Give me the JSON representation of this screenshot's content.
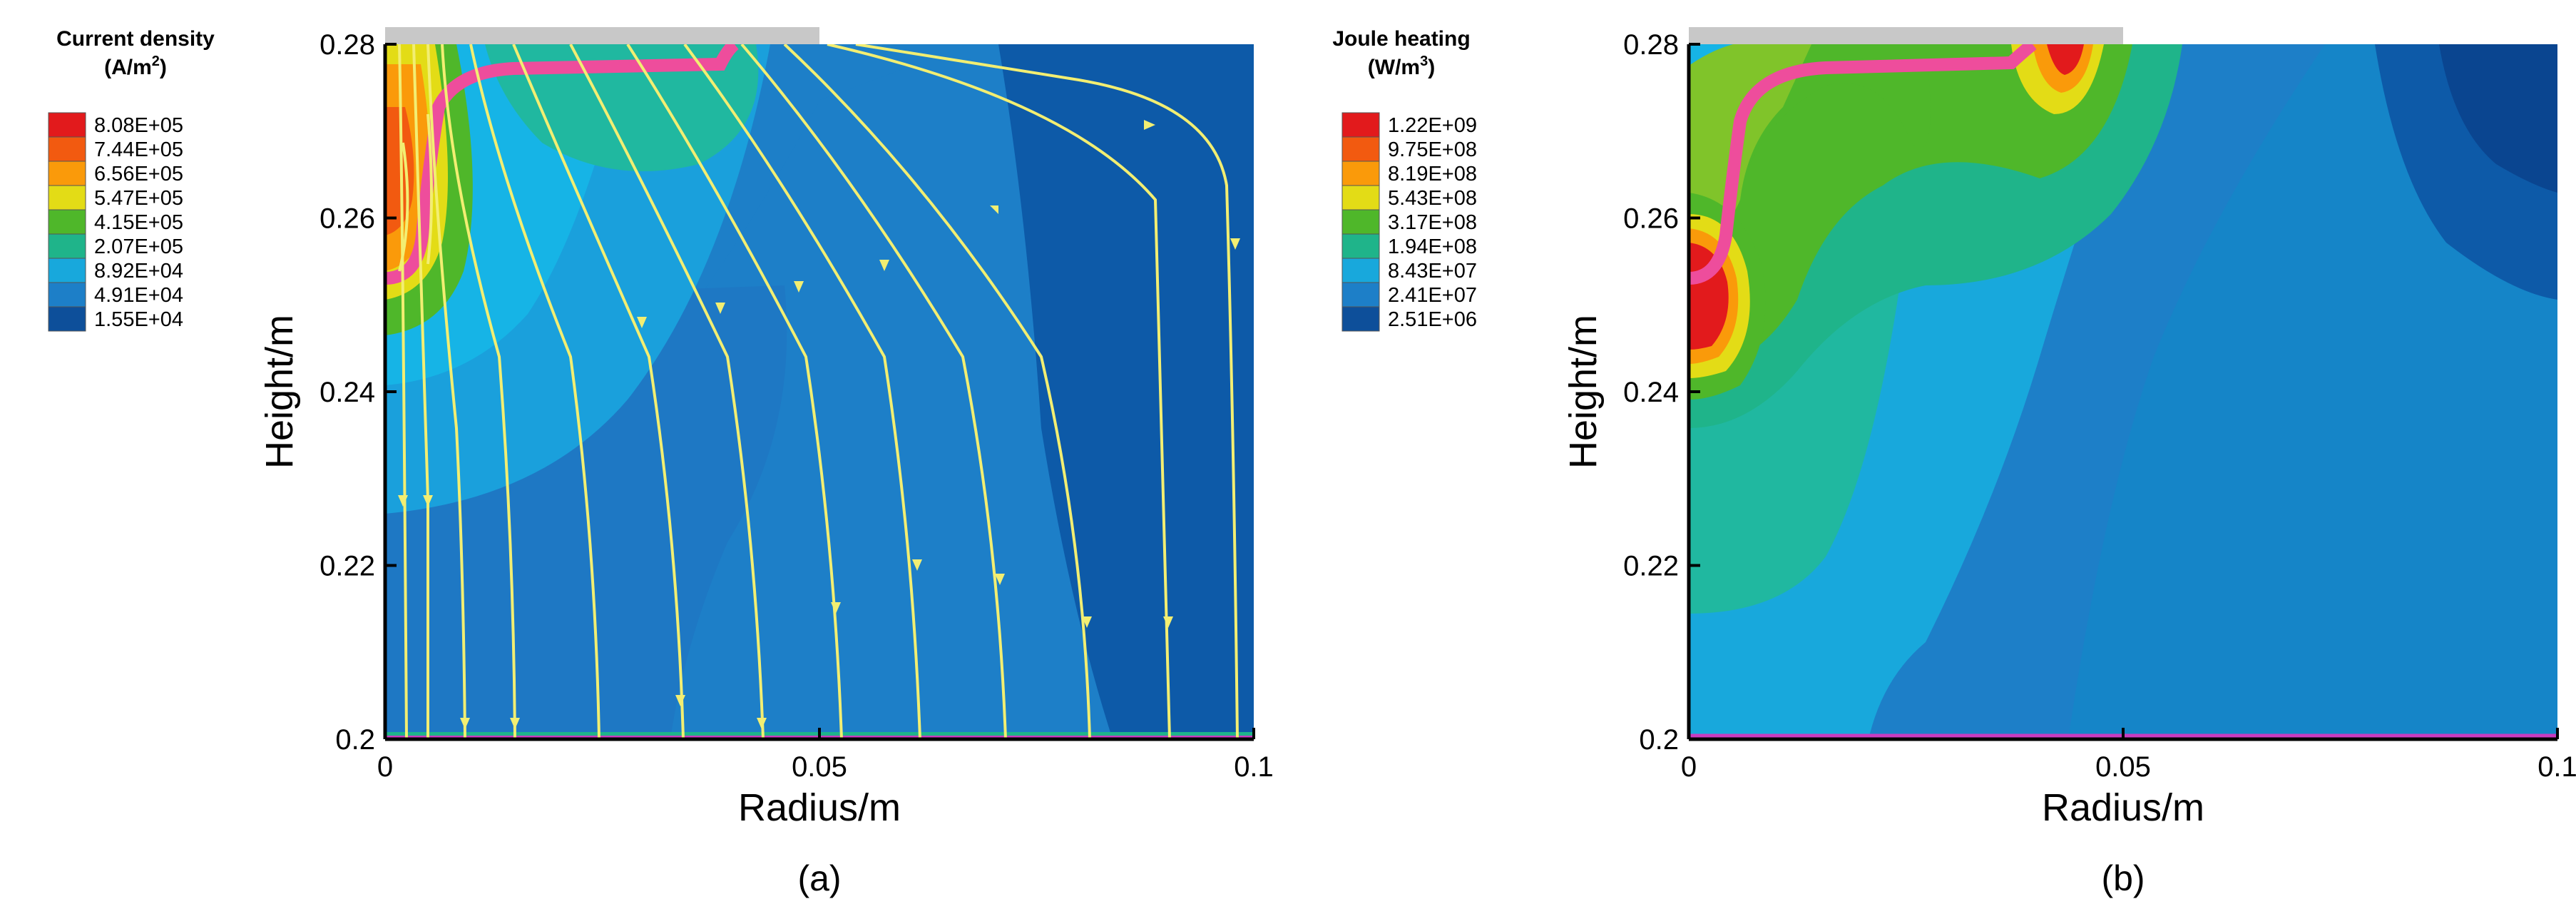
{
  "chart_data": [
    {
      "type": "heatmap",
      "panel_label": "(a)",
      "xlabel": "Radius/m",
      "ylabel": "Height/m",
      "xlim": [
        0,
        0.1
      ],
      "ylim": [
        0.2,
        0.28
      ],
      "x_ticks": [
        {
          "value": 0,
          "label": "0"
        },
        {
          "value": 0.05,
          "label": "0.05"
        },
        {
          "value": 0.1,
          "label": "0.1"
        }
      ],
      "y_ticks": [
        {
          "value": 0.2,
          "label": "0.2"
        },
        {
          "value": 0.22,
          "label": "0.22"
        },
        {
          "value": 0.24,
          "label": "0.24"
        },
        {
          "value": 0.26,
          "label": "0.26"
        },
        {
          "value": 0.28,
          "label": "0.28"
        }
      ],
      "legend": {
        "title_line1": "Current density",
        "title_line2": "(A/m",
        "title_sup": "2",
        "title_close": ")",
        "levels": [
          "8.08E+05",
          "7.44E+05",
          "6.56E+05",
          "5.47E+05",
          "4.15E+05",
          "2.07E+05",
          "8.92E+04",
          "4.91E+04",
          "1.55E+04"
        ]
      },
      "electrode": {
        "x_start": 0,
        "x_end": 0.05,
        "y": 0.28
      },
      "streamlines": true,
      "grid": false
    },
    {
      "type": "heatmap",
      "panel_label": "(b)",
      "xlabel": "Radius/m",
      "ylabel": "Height/m",
      "xlim": [
        0,
        0.1
      ],
      "ylim": [
        0.2,
        0.28
      ],
      "x_ticks": [
        {
          "value": 0,
          "label": "0"
        },
        {
          "value": 0.05,
          "label": "0.05"
        },
        {
          "value": 0.1,
          "label": "0.1"
        }
      ],
      "y_ticks": [
        {
          "value": 0.2,
          "label": "0.2"
        },
        {
          "value": 0.22,
          "label": "0.22"
        },
        {
          "value": 0.24,
          "label": "0.24"
        },
        {
          "value": 0.26,
          "label": "0.26"
        },
        {
          "value": 0.28,
          "label": "0.28"
        }
      ],
      "legend": {
        "title_line1": "Joule heating",
        "title_line2": "(W/m",
        "title_sup": "3",
        "title_close": ")",
        "levels": [
          "1.22E+09",
          "9.75E+08",
          "8.19E+08",
          "5.43E+08",
          "3.17E+08",
          "1.94E+08",
          "8.43E+07",
          "2.41E+07",
          "2.51E+06"
        ]
      },
      "electrode": {
        "x_start": 0,
        "x_end": 0.05,
        "y": 0.28
      },
      "streamlines": false,
      "grid": false
    }
  ],
  "colors": {
    "scale": [
      "#e21a1c",
      "#f25a10",
      "#fa9a0a",
      "#e3dc16",
      "#4fb72a",
      "#1fb48a",
      "#18a8dc",
      "#1d7fc8",
      "#0d4f9a"
    ],
    "interface": "#ee4d9c",
    "streamline": "#f2ee72",
    "electrode": "#c8c8c8"
  }
}
